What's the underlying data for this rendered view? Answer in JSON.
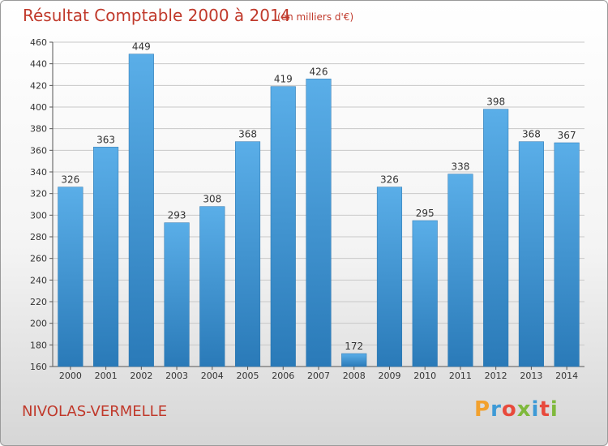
{
  "header": {
    "title": "Résultat Comptable 2000 à 2014",
    "unit": "(en milliers d'€)"
  },
  "footer": {
    "city": "NIVOLAS-VERMELLE",
    "logo": "Proxiti"
  },
  "colors": {
    "title": "#c0392b",
    "bar_top": "#5aaee8",
    "bar_bottom": "#2a7ab8",
    "grid": "#c8c8c8"
  },
  "chart_data": {
    "type": "bar",
    "title": "Résultat Comptable 2000 à 2014",
    "subtitle": "(en milliers d'€)",
    "xlabel": "",
    "ylabel": "",
    "categories": [
      "2000",
      "2001",
      "2002",
      "2003",
      "2004",
      "2005",
      "2006",
      "2007",
      "2008",
      "2009",
      "2010",
      "2011",
      "2012",
      "2013",
      "2014"
    ],
    "values": [
      326,
      363,
      449,
      293,
      308,
      368,
      419,
      426,
      172,
      326,
      295,
      338,
      398,
      368,
      367
    ],
    "ylim": [
      160,
      460
    ],
    "yticks": [
      160,
      180,
      200,
      220,
      240,
      260,
      280,
      300,
      320,
      340,
      360,
      380,
      400,
      420,
      440,
      460
    ],
    "grid": true,
    "data_labels": true
  }
}
